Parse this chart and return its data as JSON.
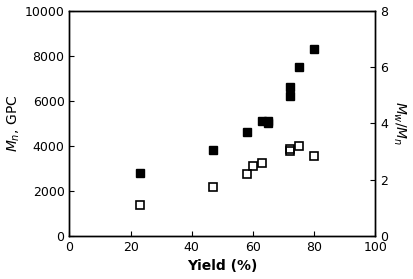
{
  "mn_x": [
    23,
    47,
    58,
    63,
    65,
    65,
    72,
    72,
    75,
    80
  ],
  "mn_y": [
    2800,
    3800,
    4600,
    5100,
    5100,
    5000,
    6600,
    6200,
    7500,
    8300
  ],
  "pdi_x": [
    23,
    47,
    58,
    60,
    63,
    72,
    72,
    75,
    80
  ],
  "pdi_y": [
    1.1,
    1.75,
    2.2,
    2.5,
    2.6,
    3.1,
    3.0,
    3.2,
    2.85
  ],
  "xlim": [
    0,
    100
  ],
  "ylim_left": [
    0,
    10000
  ],
  "ylim_right": [
    0,
    8
  ],
  "xticks": [
    0,
    20,
    40,
    60,
    80,
    100
  ],
  "yticks_left": [
    0,
    2000,
    4000,
    6000,
    8000,
    10000
  ],
  "yticks_right": [
    0,
    2,
    4,
    6,
    8
  ],
  "xlabel": "Yield (%)",
  "ylabel_left": "$\\mathit{M}_{n}$, GPC",
  "ylabel_right": "$\\mathit{M}_{w}/\\mathit{M}_{n}$",
  "bg_color": "#ffffff",
  "marker_size": 6,
  "tick_labelsize": 9,
  "axis_labelsize": 10
}
